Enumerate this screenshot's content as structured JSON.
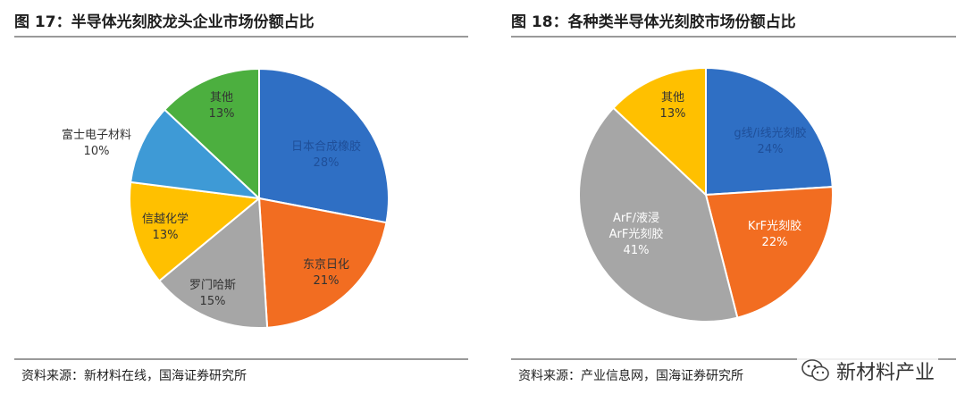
{
  "chart_data": [
    {
      "type": "pie",
      "title": "图 17：半导体光刻胶龙头企业市场份额占比",
      "slices": [
        {
          "label": "日本合成橡胶",
          "value": 28,
          "value_label": "28%",
          "color": "#2f6fc4",
          "label_color": "#1f4f99"
        },
        {
          "label": "东京日化",
          "value": 21,
          "value_label": "21%",
          "color": "#f26d21",
          "label_color": "#333333"
        },
        {
          "label": "罗门哈斯",
          "value": 15,
          "value_label": "15%",
          "color": "#a6a6a6",
          "label_color": "#333333"
        },
        {
          "label": "信越化学",
          "value": 13,
          "value_label": "13%",
          "color": "#ffc000",
          "label_color": "#333333"
        },
        {
          "label": "富士电子材料",
          "value": 10,
          "value_label": "10%",
          "color": "#3e9ad6",
          "label_color": "#333333"
        },
        {
          "label": "其他",
          "value": 13,
          "value_label": "13%",
          "color": "#4caf3f",
          "label_color": "#333333"
        }
      ],
      "source": "资料来源：新材料在线，国海证券研究所"
    },
    {
      "type": "pie",
      "title": "图 18：各种类半导体光刻胶市场份额占比",
      "slices": [
        {
          "label": "g线/i线光刻胶",
          "value": 24,
          "value_label": "24%",
          "color": "#2f6fc4",
          "label_color": "#1f4f99"
        },
        {
          "label": "KrF光刻胶",
          "value": 22,
          "value_label": "22%",
          "color": "#f26d21",
          "label_color": "#ffffff"
        },
        {
          "label": "ArF/液浸 ArF光刻胶",
          "value": 41,
          "value_label": "41%",
          "color": "#a6a6a6",
          "label_color": "#ffffff"
        },
        {
          "label": "其他",
          "value": 13,
          "value_label": "13%",
          "color": "#ffc000",
          "label_color": "#333333"
        }
      ],
      "source": "资料来源：产业信息网，国海证券研究所"
    }
  ],
  "watermark": {
    "text": "新材料产业",
    "icon": "wechat-icon"
  }
}
